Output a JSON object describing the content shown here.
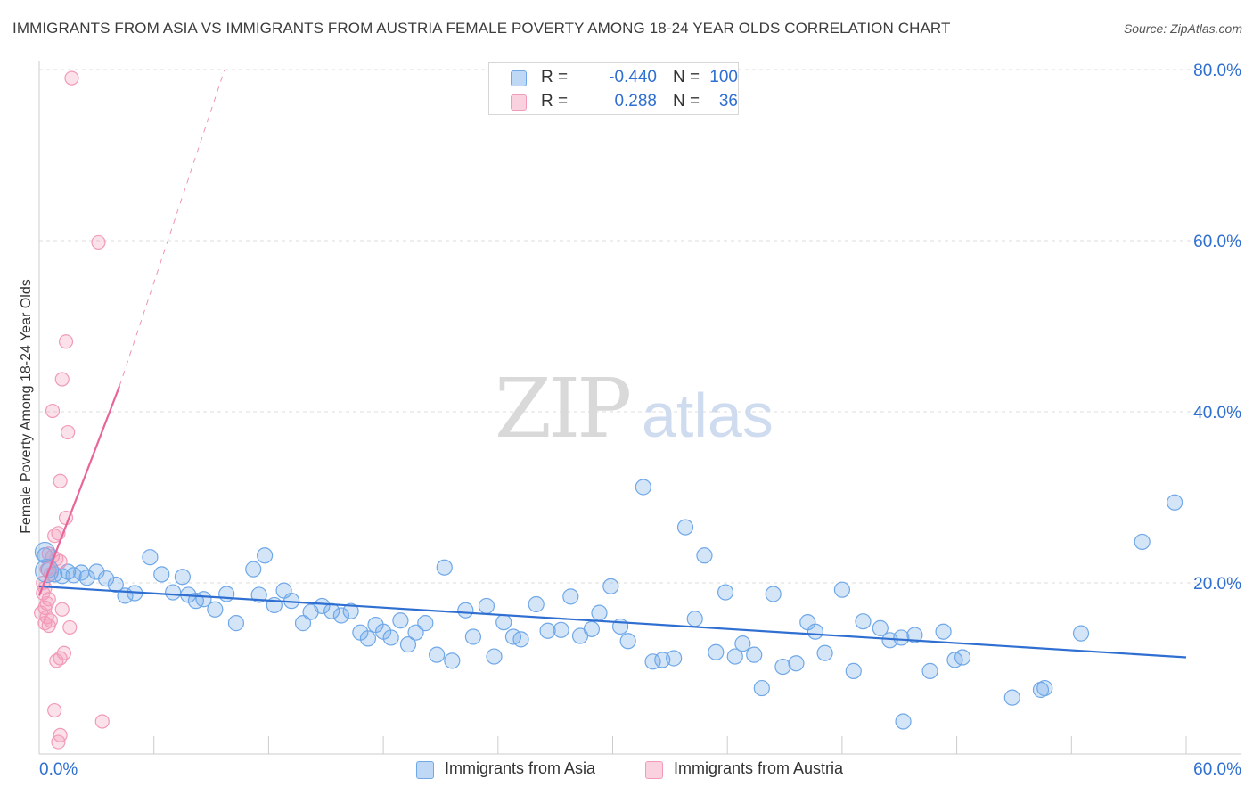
{
  "chart_data": {
    "type": "scatter",
    "title": "IMMIGRANTS FROM ASIA VS IMMIGRANTS FROM AUSTRIA FEMALE POVERTY AMONG 18-24 YEAR OLDS CORRELATION CHART",
    "source": "Source: ZipAtlas.com",
    "xlabel": "",
    "ylabel": "Female Poverty Among 18-24 Year Olds",
    "xlim": [
      0,
      60
    ],
    "ylim": [
      0,
      80
    ],
    "x_tick_labels": [
      "0.0%",
      "60.0%"
    ],
    "y_ticks": [
      20,
      40,
      60,
      80
    ],
    "y_tick_labels": [
      "20.0%",
      "40.0%",
      "60.0%",
      "80.0%"
    ],
    "watermark": {
      "zip": "ZIP",
      "atlas": "atlas"
    },
    "legend": {
      "r_label": "R =",
      "n_label": "N =",
      "entries": [
        {
          "name": "Immigrants from Asia",
          "r": "-0.440",
          "n": "100",
          "color": "#6fa8e8"
        },
        {
          "name": "Immigrants from Austria",
          "r": "0.288",
          "n": "36",
          "color": "#f29ab8"
        }
      ]
    },
    "series": [
      {
        "name": "Immigrants from Asia",
        "color": "#6fa8e8",
        "line_color": "#2f6fd1",
        "trend": {
          "x": [
            0.0,
            60.0
          ],
          "y": [
            19.6,
            11.3
          ],
          "dashed_to": null
        },
        "points": [
          [
            0.3,
            23.2
          ],
          [
            0.5,
            21.5
          ],
          [
            0.8,
            21.0
          ],
          [
            1.2,
            20.8
          ],
          [
            1.5,
            21.3
          ],
          [
            1.8,
            20.9
          ],
          [
            2.2,
            21.2
          ],
          [
            2.5,
            20.6
          ],
          [
            3.0,
            21.3
          ],
          [
            3.5,
            20.5
          ],
          [
            4.0,
            19.8
          ],
          [
            4.5,
            18.5
          ],
          [
            5.0,
            18.8
          ],
          [
            5.8,
            23.0
          ],
          [
            6.4,
            21.0
          ],
          [
            7.0,
            18.9
          ],
          [
            7.5,
            20.7
          ],
          [
            7.8,
            18.6
          ],
          [
            8.2,
            17.9
          ],
          [
            8.6,
            18.1
          ],
          [
            9.2,
            16.9
          ],
          [
            9.8,
            18.7
          ],
          [
            10.3,
            15.3
          ],
          [
            11.2,
            21.6
          ],
          [
            11.5,
            18.6
          ],
          [
            11.8,
            23.2
          ],
          [
            12.3,
            17.4
          ],
          [
            12.8,
            19.1
          ],
          [
            13.2,
            17.9
          ],
          [
            13.8,
            15.3
          ],
          [
            14.2,
            16.6
          ],
          [
            14.8,
            17.3
          ],
          [
            15.3,
            16.7
          ],
          [
            15.8,
            16.2
          ],
          [
            16.3,
            16.7
          ],
          [
            16.8,
            14.2
          ],
          [
            17.2,
            13.5
          ],
          [
            17.6,
            15.1
          ],
          [
            18.0,
            14.3
          ],
          [
            18.4,
            13.6
          ],
          [
            18.9,
            15.6
          ],
          [
            19.3,
            12.8
          ],
          [
            19.7,
            14.2
          ],
          [
            20.2,
            15.3
          ],
          [
            20.8,
            11.6
          ],
          [
            21.2,
            21.8
          ],
          [
            21.6,
            10.9
          ],
          [
            22.3,
            16.8
          ],
          [
            22.7,
            13.7
          ],
          [
            23.4,
            17.3
          ],
          [
            23.8,
            11.4
          ],
          [
            24.3,
            15.4
          ],
          [
            24.8,
            13.7
          ],
          [
            25.2,
            13.4
          ],
          [
            26.0,
            17.5
          ],
          [
            26.6,
            14.4
          ],
          [
            27.3,
            14.5
          ],
          [
            27.8,
            18.4
          ],
          [
            28.3,
            13.8
          ],
          [
            28.9,
            14.6
          ],
          [
            29.3,
            16.5
          ],
          [
            29.9,
            19.6
          ],
          [
            30.4,
            14.9
          ],
          [
            30.8,
            13.2
          ],
          [
            31.6,
            31.2
          ],
          [
            32.1,
            10.8
          ],
          [
            32.6,
            11.0
          ],
          [
            33.2,
            11.2
          ],
          [
            33.8,
            26.5
          ],
          [
            34.3,
            15.8
          ],
          [
            34.8,
            23.2
          ],
          [
            35.4,
            11.9
          ],
          [
            35.9,
            18.9
          ],
          [
            36.4,
            11.4
          ],
          [
            36.8,
            12.9
          ],
          [
            37.4,
            11.6
          ],
          [
            37.8,
            7.7
          ],
          [
            38.4,
            18.7
          ],
          [
            38.9,
            10.2
          ],
          [
            39.6,
            10.6
          ],
          [
            40.2,
            15.4
          ],
          [
            40.6,
            14.3
          ],
          [
            41.1,
            11.8
          ],
          [
            42.0,
            19.2
          ],
          [
            42.6,
            9.7
          ],
          [
            43.1,
            15.5
          ],
          [
            44.0,
            14.7
          ],
          [
            44.5,
            13.3
          ],
          [
            45.1,
            13.6
          ],
          [
            45.2,
            3.8
          ],
          [
            45.8,
            13.9
          ],
          [
            46.6,
            9.7
          ],
          [
            47.3,
            14.3
          ],
          [
            47.9,
            11.0
          ],
          [
            48.3,
            11.3
          ],
          [
            50.9,
            6.6
          ],
          [
            52.4,
            7.5
          ],
          [
            52.6,
            7.7
          ],
          [
            54.5,
            14.1
          ],
          [
            57.7,
            24.8
          ],
          [
            59.4,
            29.4
          ]
        ]
      },
      {
        "name": "Immigrants from Austria",
        "color": "#f29ab8",
        "line_color": "#e8659a",
        "trend": {
          "x": [
            0.0,
            4.2
          ],
          "y": [
            18.5,
            43.0
          ],
          "dashed_to": [
            9.7,
            80.0
          ]
        },
        "points": [
          [
            1.7,
            79.0
          ],
          [
            3.1,
            59.8
          ],
          [
            1.4,
            48.2
          ],
          [
            1.2,
            43.8
          ],
          [
            0.7,
            40.1
          ],
          [
            1.5,
            37.6
          ],
          [
            1.1,
            31.9
          ],
          [
            1.4,
            27.6
          ],
          [
            0.8,
            25.5
          ],
          [
            1.0,
            25.8
          ],
          [
            0.5,
            23.4
          ],
          [
            0.7,
            23.1
          ],
          [
            0.9,
            22.8
          ],
          [
            1.1,
            22.5
          ],
          [
            0.4,
            21.6
          ],
          [
            0.6,
            21.0
          ],
          [
            0.3,
            19.4
          ],
          [
            0.2,
            18.8
          ],
          [
            0.5,
            18.1
          ],
          [
            0.4,
            17.6
          ],
          [
            0.3,
            17.1
          ],
          [
            1.2,
            16.9
          ],
          [
            0.4,
            16.0
          ],
          [
            0.6,
            15.6
          ],
          [
            0.3,
            15.3
          ],
          [
            0.5,
            15.0
          ],
          [
            1.6,
            14.8
          ],
          [
            1.3,
            11.8
          ],
          [
            1.1,
            11.2
          ],
          [
            0.9,
            10.9
          ],
          [
            0.8,
            5.1
          ],
          [
            3.3,
            3.8
          ],
          [
            1.1,
            2.2
          ],
          [
            1.0,
            1.4
          ],
          [
            0.2,
            20.0
          ],
          [
            0.1,
            16.5
          ]
        ]
      }
    ]
  }
}
